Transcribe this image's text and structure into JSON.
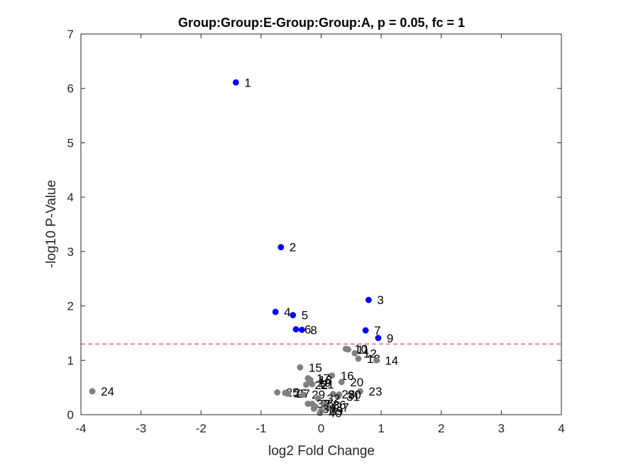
{
  "chart_data": {
    "type": "scatter",
    "title": "Group:Group:E-Group:Group:A, p = 0.05, fc = 1",
    "xlabel": "log2 Fold Change",
    "ylabel": "-log10 P-Value",
    "xlim": [
      -4,
      4
    ],
    "ylim": [
      0,
      7
    ],
    "xticks": [
      "-4",
      "-3",
      "-2",
      "-1",
      "0",
      "1",
      "2",
      "3",
      "4"
    ],
    "yticks": [
      "0",
      "1",
      "2",
      "3",
      "4",
      "5",
      "6",
      "7"
    ],
    "threshold": {
      "y": 1.30103,
      "color": "#d62728",
      "style": "dashed"
    },
    "grid": false,
    "colors": {
      "significant": "#0000ff",
      "nonsignificant": "#808080"
    },
    "series": [
      {
        "group": "significant",
        "points": [
          {
            "label": "1",
            "x": -1.42,
            "y": 6.11
          },
          {
            "label": "2",
            "x": -0.67,
            "y": 3.08
          },
          {
            "label": "3",
            "x": 0.79,
            "y": 2.11
          },
          {
            "label": "4",
            "x": -0.76,
            "y": 1.89
          },
          {
            "label": "5",
            "x": -0.47,
            "y": 1.83
          },
          {
            "label": "6",
            "x": -0.42,
            "y": 1.57
          },
          {
            "label": "8",
            "x": -0.32,
            "y": 1.56
          },
          {
            "label": "7",
            "x": 0.74,
            "y": 1.55
          },
          {
            "label": "9",
            "x": 0.95,
            "y": 1.41
          }
        ]
      },
      {
        "group": "nonsignificant",
        "points": [
          {
            "label": "10",
            "x": 0.41,
            "y": 1.21
          },
          {
            "label": "11",
            "x": 0.45,
            "y": 1.2
          },
          {
            "label": "12",
            "x": 0.56,
            "y": 1.13
          },
          {
            "label": "13",
            "x": 0.62,
            "y": 1.03
          },
          {
            "label": "14",
            "x": 0.92,
            "y": 1.0
          },
          {
            "label": "15",
            "x": -0.35,
            "y": 0.87
          },
          {
            "label": "16",
            "x": 0.18,
            "y": 0.72
          },
          {
            "label": "17",
            "x": -0.22,
            "y": 0.67
          },
          {
            "label": "18",
            "x": -0.18,
            "y": 0.64
          },
          {
            "label": "19",
            "x": -0.2,
            "y": 0.59
          },
          {
            "label": "20",
            "x": 0.34,
            "y": 0.6
          },
          {
            "label": "21",
            "x": -0.15,
            "y": 0.56
          },
          {
            "label": "22",
            "x": -0.25,
            "y": 0.55
          },
          {
            "label": "23",
            "x": 0.65,
            "y": 0.43
          },
          {
            "label": "24",
            "x": -3.81,
            "y": 0.43
          },
          {
            "label": "25",
            "x": -0.73,
            "y": 0.41
          },
          {
            "label": "26",
            "x": -0.6,
            "y": 0.4
          },
          {
            "label": "27",
            "x": -0.55,
            "y": 0.39
          },
          {
            "label": "28",
            "x": 0.2,
            "y": 0.38
          },
          {
            "label": "29",
            "x": -0.3,
            "y": 0.37
          },
          {
            "label": "30",
            "x": 0.3,
            "y": 0.37
          },
          {
            "label": "31",
            "x": 0.28,
            "y": 0.33
          },
          {
            "label": "32",
            "x": -0.05,
            "y": 0.3
          },
          {
            "label": "33",
            "x": -0.22,
            "y": 0.2
          },
          {
            "label": "34",
            "x": -0.1,
            "y": 0.15
          },
          {
            "label": "35",
            "x": -0.15,
            "y": 0.2
          },
          {
            "label": "36",
            "x": 0.05,
            "y": 0.18
          },
          {
            "label": "37",
            "x": 0.1,
            "y": 0.14
          },
          {
            "label": "38",
            "x": -0.12,
            "y": 0.11
          },
          {
            "label": "39",
            "x": 0.0,
            "y": 0.07
          },
          {
            "label": "40",
            "x": -0.02,
            "y": 0.03
          }
        ]
      }
    ]
  }
}
